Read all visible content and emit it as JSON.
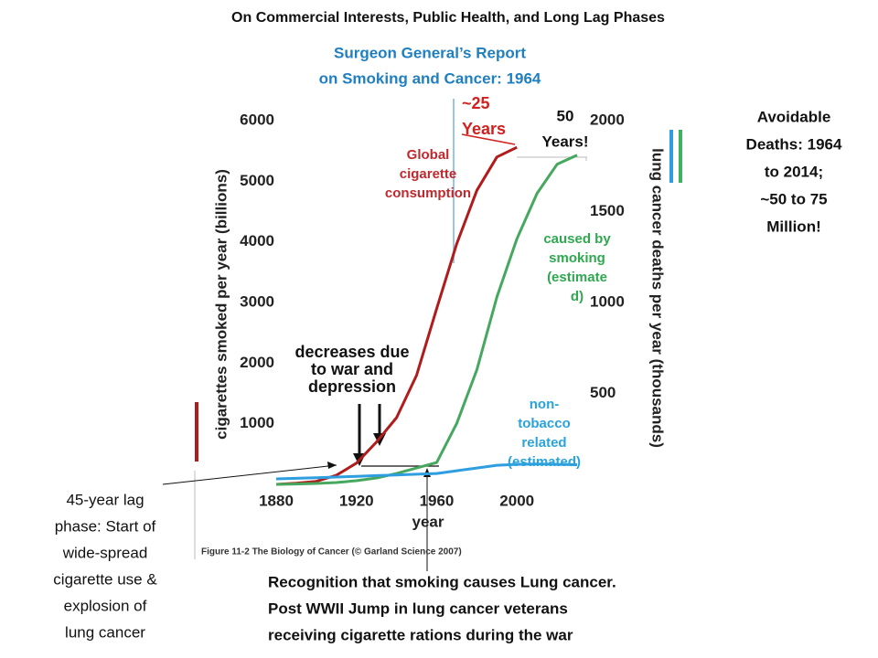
{
  "slide": {
    "title": "On Commercial Interests, Public Health, and Long Lag Phases",
    "surgeon_general": [
      "Surgeon General’s Report",
      "on Smoking and Cancer: 1964"
    ],
    "lag25": [
      "~25",
      "Years"
    ],
    "lag50": [
      "50",
      "Years!"
    ],
    "avoidable": [
      "Avoidable",
      "Deaths: 1964",
      "to 2014;",
      "~50 to 75",
      "Million!"
    ],
    "lag45": [
      "45-year  lag",
      "phase: Start of",
      "wide-spread",
      "cigarette use &",
      "explosion of",
      "lung cancer"
    ],
    "recognition": [
      "Recognition that smoking causes Lung cancer.",
      "Post WWII Jump in lung cancer veterans",
      "receiving cigarette rations during the war"
    ]
  },
  "chart_data": {
    "type": "line",
    "caption": "Figure 11-2 The Biology of Cancer (© Garland Science 2007)",
    "xlabel": "year",
    "ylabel": "cigarettes smoked per year (billions)",
    "y2label": "lung cancer deaths per year (thousands)",
    "annotations": {
      "global": [
        "Global",
        "cigarette",
        "consumption"
      ],
      "smoking": [
        "caused by",
        "smoking",
        "(estimate",
        "d)"
      ],
      "nontobacco": [
        "non-",
        "tobacco",
        "related",
        "(estimated)"
      ],
      "decreases": [
        "decreases due",
        "to war and",
        "depression"
      ]
    },
    "x": [
      1880,
      1890,
      1900,
      1910,
      1920,
      1930,
      1940,
      1950,
      1960,
      1970,
      1980,
      1990,
      2000,
      2010,
      2020,
      2030
    ],
    "series": [
      {
        "name": "Global cigarette consumption",
        "color": "#b01c1c",
        "axis": "y",
        "values": [
          0,
          20,
          50,
          150,
          350,
          700,
          1100,
          1800,
          2900,
          3970,
          4850,
          5400,
          5560,
          null,
          null,
          null
        ]
      },
      {
        "name": "caused by smoking (estimated)",
        "color": "#45a85e",
        "axis": "y2",
        "values": [
          0,
          2,
          5,
          10,
          20,
          35,
          60,
          90,
          120,
          335,
          630,
          1030,
          1350,
          1600,
          1760,
          1810
        ]
      },
      {
        "name": "non-tobacco related (estimated)",
        "color": "#2e9ee0",
        "axis": "y2",
        "values": [
          30,
          33,
          36,
          40,
          44,
          48,
          52,
          56,
          60,
          75,
          90,
          105,
          110,
          112,
          110,
          108
        ]
      }
    ],
    "xlim": [
      1880,
      2035
    ],
    "xticks": [
      1880,
      1920,
      1960,
      2000
    ],
    "ylim": [
      0,
      6000
    ],
    "yticks": [
      1000,
      2000,
      3000,
      4000,
      5000,
      6000
    ],
    "y2lim": [
      0,
      2000
    ],
    "y2ticks": [
      500,
      1000,
      1500,
      2000
    ],
    "grid": false
  }
}
